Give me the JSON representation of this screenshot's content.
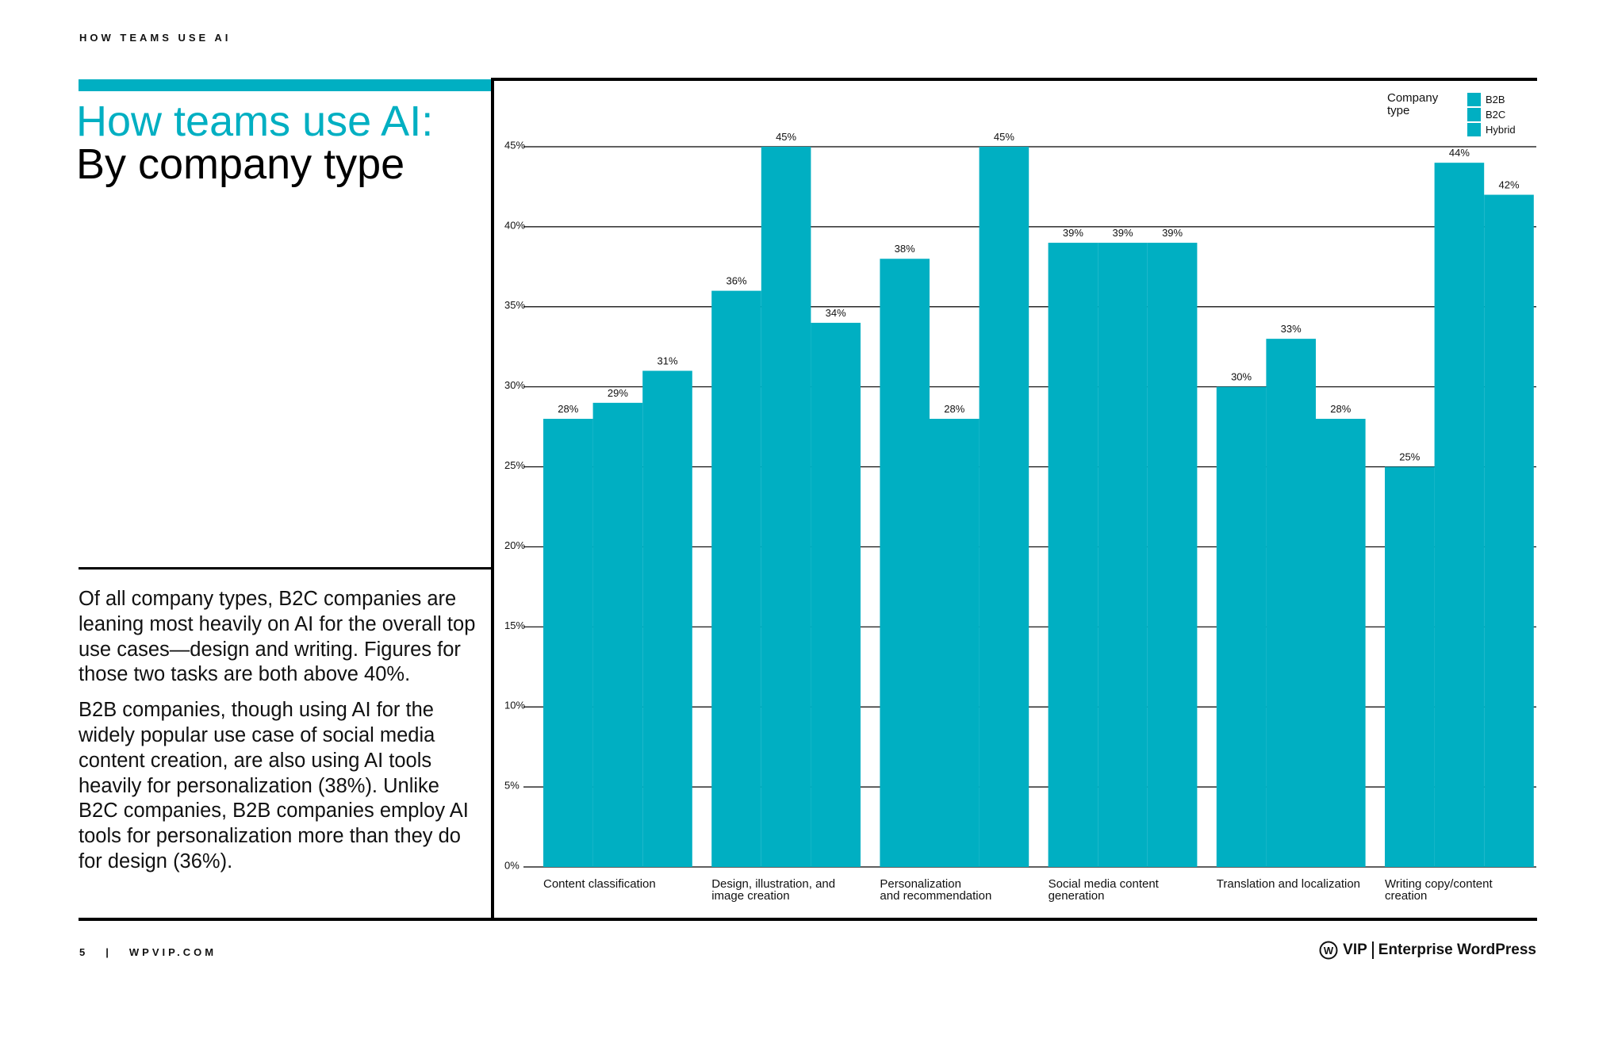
{
  "header": {
    "section": "HOW TEAMS USE AI"
  },
  "title": {
    "line1": "How teams use AI:",
    "line2": "By company type"
  },
  "body": [
    "Of all company types, B2C companies are leaning most heavily on AI for the overall top use cases—design and writing. Figures for those two tasks are both above 40%.",
    "B2B companies, though using AI for the widely popular use case of social media content creation, are also using AI tools heavily for personalization (38%). Unlike B2C companies, B2B companies employ AI tools for personalization more than they do for design (36%)."
  ],
  "footer": {
    "page": "5",
    "separator": "|",
    "site": "WPVIP.COM",
    "logo": "VIP",
    "brand": "Enterprise WordPress"
  },
  "chart_data": {
    "type": "bar",
    "categories": [
      "Content classification",
      "Design, illustration, and\nimage creation",
      "Personalization\nand recommendation",
      "Social media content\ngeneration",
      "Translation and localization",
      "Writing copy/content\ncreation"
    ],
    "legend_title": "Company type",
    "legend": "top-right",
    "grid": true,
    "series": [
      {
        "name": "B2B",
        "color": "#00afc2",
        "values": [
          28,
          36,
          38,
          39,
          30,
          25
        ],
        "value_labels": [
          "28%",
          "36%",
          "38%",
          "39%",
          "30%",
          "25%"
        ]
      },
      {
        "name": "B2C",
        "color": "#00afc2",
        "values": [
          29,
          45,
          28,
          39,
          33,
          44
        ],
        "value_labels": [
          "29%",
          "45%",
          "28%",
          "39%",
          "33%",
          "44%"
        ]
      },
      {
        "name": "Hybrid",
        "color": "#00afc2",
        "values": [
          31,
          34,
          45,
          39,
          28,
          42
        ],
        "value_labels": [
          "31%",
          "34%",
          "45%",
          "39%",
          "28%",
          "42%"
        ]
      }
    ],
    "ylim": [
      0,
      45
    ],
    "yticks": [
      {
        "value": 0,
        "label": "0%"
      },
      {
        "value": 5,
        "label": "5%"
      },
      {
        "value": 10,
        "label": "10%"
      },
      {
        "value": 15,
        "label": "15%"
      },
      {
        "value": 20,
        "label": "20%"
      },
      {
        "value": 25,
        "label": "25%"
      },
      {
        "value": 30,
        "label": "30%"
      },
      {
        "value": 35,
        "label": "35%"
      },
      {
        "value": 40,
        "label": "40%"
      },
      {
        "value": 45,
        "label": "45%"
      }
    ]
  }
}
